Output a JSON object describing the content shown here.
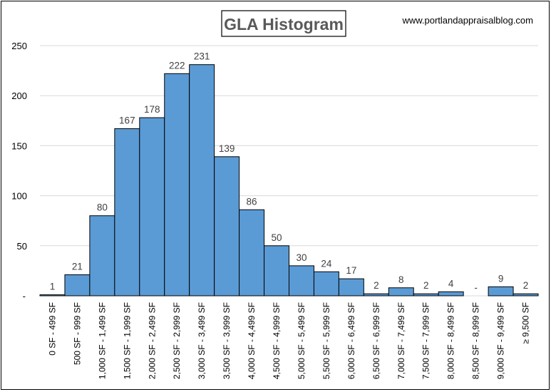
{
  "chart_data": {
    "type": "bar",
    "title": "GLA Histogram",
    "watermark": "www.portlandappraisalblog.com",
    "categories": [
      "0 SF - 499 SF",
      "500 SF - 999 SF",
      "1,000 SF - 1,499 SF",
      "1,500 SF - 1,999 SF",
      "2,000 SF - 2,499 SF",
      "2,500 SF - 2,999 SF",
      "3,000 SF - 3,499 SF",
      "3,500 SF - 3,999 SF",
      "4,000 SF - 4,499 SF",
      "4,500 SF - 4,999 SF",
      "5,000 SF - 5,499 SF",
      "5,500 SF - 5,999 SF",
      "6,000 SF - 6,499 SF",
      "6,500 SF - 6,999 SF",
      "7,000 SF - 7,499 SF",
      "7,500 SF - 7,999 SF",
      "8,000 SF - 8,499 SF",
      "8,500 SF - 8,999 SF",
      "9,000 SF - 9,499 SF",
      "≥ 9,500 SF"
    ],
    "values": [
      1,
      21,
      80,
      167,
      178,
      222,
      231,
      139,
      86,
      50,
      30,
      24,
      17,
      2,
      8,
      2,
      4,
      0,
      9,
      2
    ],
    "data_labels": [
      "1",
      "21",
      "80",
      "167",
      "178",
      "222",
      "231",
      "139",
      "86",
      "50",
      "30",
      "24",
      "17",
      "2",
      "8",
      "2",
      "4",
      "-",
      "9",
      "2"
    ],
    "xlabel": "",
    "ylabel": "",
    "ylim": [
      0,
      250
    ],
    "yticks": [
      0,
      50,
      100,
      150,
      200,
      250
    ],
    "ytick_labels": [
      "-",
      "50",
      "100",
      "150",
      "200",
      "250"
    ],
    "grid": true,
    "legend": "none",
    "colors": {
      "bar": "#5b9bd5",
      "bar_edge": "#000000",
      "grid": "#d9d9d9",
      "title_text": "#595959"
    }
  }
}
